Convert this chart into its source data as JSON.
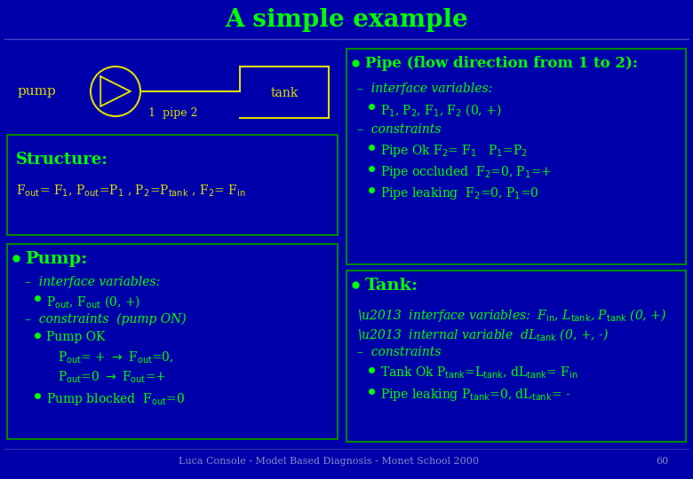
{
  "bg_color": "#0000AA",
  "title": "A simple example",
  "title_color": "#00FF00",
  "title_fontsize": 20,
  "diagram_color": "#DDDD00",
  "text_green": "#00FF00",
  "text_yellow": "#DDDD00",
  "box_edge_color": "#008800",
  "footer_text": "Luca Console - Model Based Diagnosis - Monet School 2000",
  "footer_page": "60"
}
